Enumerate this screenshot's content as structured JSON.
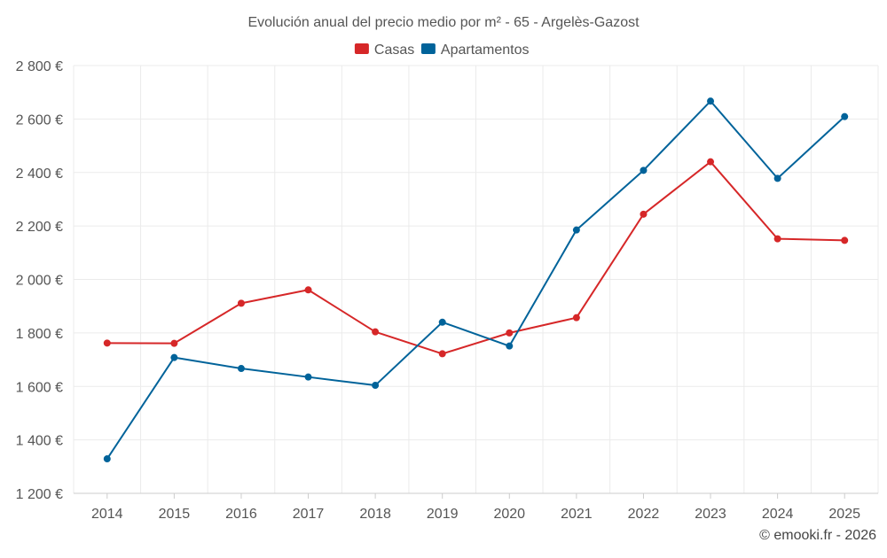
{
  "chart_data": {
    "type": "line",
    "title": "Evolución anual del precio medio por m² - 65 - Argelès-Gazost",
    "categories": [
      "2014",
      "2015",
      "2016",
      "2017",
      "2018",
      "2019",
      "2020",
      "2021",
      "2022",
      "2023",
      "2024",
      "2025"
    ],
    "y_ticks": [
      "1 200 €",
      "1 400 €",
      "1 600 €",
      "1 800 €",
      "2 000 €",
      "2 200 €",
      "2 400 €",
      "2 600 €",
      "2 800 €"
    ],
    "ylim": [
      1200,
      2800
    ],
    "xlabel": "",
    "ylabel": "",
    "grid": true,
    "legend_position": "top-center",
    "series": [
      {
        "name": "Casas",
        "color": "#d62728",
        "values": [
          1762,
          1761,
          1911,
          1961,
          1804,
          1722,
          1800,
          1857,
          2244,
          2440,
          2152,
          2146
        ]
      },
      {
        "name": "Apartamentos",
        "color": "#00639a",
        "values": [
          1329,
          1708,
          1667,
          1635,
          1604,
          1840,
          1751,
          2185,
          2408,
          2667,
          2378,
          2609
        ]
      }
    ]
  },
  "credit": "© emooki.fr - 2026"
}
